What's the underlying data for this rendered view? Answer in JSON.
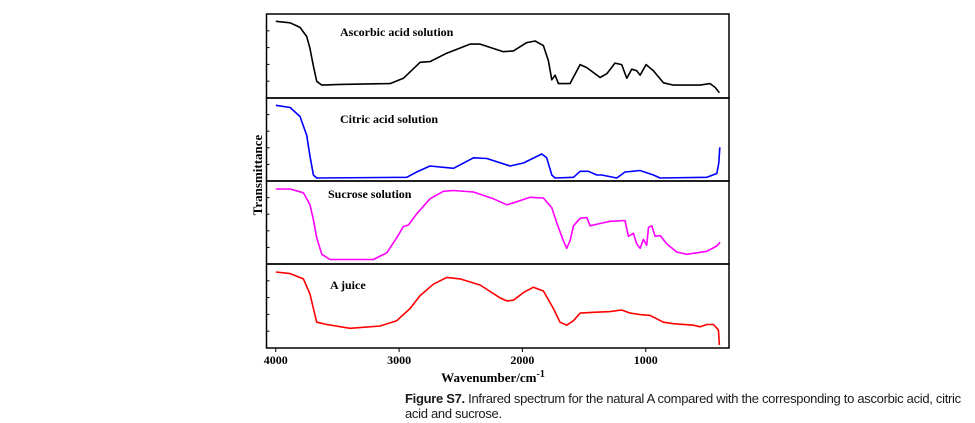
{
  "caption": {
    "label": "Figure S7.",
    "text": " Infrared spectrum for the natural A compared with the corresponding to ascorbic acid, citric acid and sucrose."
  },
  "chart_data": {
    "type": "line",
    "layout": "stacked panels",
    "xlabel": "Wavenumber/cm",
    "xlabel_sup": "-1",
    "ylabel": "Transmittance",
    "xlim": [
      4075,
      325
    ],
    "x_reversed": true,
    "xticks": [
      4000,
      3000,
      2000,
      1000
    ],
    "ylim": [
      0,
      100
    ],
    "y_tick_labels": false,
    "grid": false,
    "series": [
      {
        "name": "Ascorbic acid solution",
        "color": "#000000",
        "x": [
          4000,
          3884,
          3803,
          3749,
          3722,
          3695,
          3668,
          3627,
          3478,
          3073,
          2965,
          2830,
          2749,
          2614,
          2424,
          2343,
          2154,
          2073,
          1965,
          1897,
          1830,
          1789,
          1762,
          1735,
          1708,
          1614,
          1532,
          1478,
          1370,
          1316,
          1249,
          1195,
          1154,
          1114,
          1073,
          1046,
          997,
          938,
          857,
          776,
          559,
          478,
          438,
          403
        ],
        "y": [
          97,
          95,
          89,
          77,
          61,
          38,
          18,
          13,
          14,
          15,
          22,
          43,
          44,
          55,
          67,
          67,
          57,
          58,
          69,
          71,
          65,
          45,
          20,
          26,
          15,
          15,
          40,
          36,
          23,
          28,
          42,
          40,
          22,
          34,
          32,
          26,
          40,
          32,
          16,
          13,
          13,
          15,
          10,
          3
        ]
      },
      {
        "name": "Citric acid solution",
        "color": "#0000ff",
        "x": [
          4000,
          3884,
          3803,
          3749,
          3722,
          3695,
          3668,
          2938,
          2857,
          2749,
          2559,
          2397,
          2289,
          2100,
          1992,
          1843,
          1803,
          1762,
          1735,
          1586,
          1532,
          1465,
          1397,
          1357,
          1235,
          1168,
          1046,
          938,
          884,
          505,
          424,
          408,
          400
        ],
        "y": [
          97,
          94,
          82,
          57,
          29,
          4,
          0,
          1,
          8,
          16,
          13,
          27,
          26,
          16,
          20,
          32,
          27,
          4,
          0,
          1,
          9,
          9,
          4,
          4,
          0,
          8,
          10,
          4,
          0,
          1,
          6,
          20,
          41
        ]
      },
      {
        "name": "Sucrose solution",
        "color": "#ff00ff",
        "x": [
          4000,
          3884,
          3776,
          3722,
          3695,
          3668,
          3627,
          3559,
          3208,
          3100,
          3019,
          2965,
          2924,
          2857,
          2749,
          2641,
          2559,
          2397,
          2235,
          2127,
          2046,
          1938,
          1830,
          1762,
          1722,
          1668,
          1641,
          1614,
          1586,
          1532,
          1478,
          1451,
          1370,
          1289,
          1168,
          1154,
          1141,
          1100,
          1073,
          1046,
          1019,
          992,
          978,
          951,
          924,
          884,
          830,
          749,
          668,
          505,
          424,
          397
        ],
        "y": [
          96,
          96,
          91,
          75,
          55,
          31,
          9,
          2,
          2,
          11,
          31,
          46,
          48,
          63,
          83,
          93,
          94,
          92,
          83,
          75,
          79,
          85,
          84,
          71,
          51,
          27,
          17,
          27,
          47,
          57,
          58,
          47,
          50,
          53,
          54,
          43,
          33,
          37,
          23,
          17,
          29,
          21,
          45,
          47,
          33,
          34,
          23,
          12,
          9,
          13,
          20,
          25
        ]
      },
      {
        "name": "A juice",
        "color": "#ff0000",
        "x": [
          4000,
          3884,
          3776,
          3722,
          3695,
          3668,
          3586,
          3397,
          3154,
          3019,
          2911,
          2830,
          2722,
          2614,
          2505,
          2343,
          2181,
          2127,
          2073,
          1992,
          1911,
          1830,
          1749,
          1695,
          1641,
          1586,
          1532,
          1424,
          1289,
          1195,
          1127,
          1046,
          965,
          857,
          776,
          614,
          559,
          505,
          451,
          411,
          403
        ],
        "y": [
          96,
          94,
          87,
          67,
          48,
          30,
          27,
          22,
          25,
          32,
          48,
          65,
          80,
          89,
          87,
          79,
          62,
          58,
          59,
          69,
          76,
          71,
          48,
          30,
          26,
          32,
          42,
          43,
          44,
          46,
          42,
          40,
          39,
          30,
          28,
          26,
          24,
          27,
          27,
          20,
          0
        ]
      }
    ]
  }
}
